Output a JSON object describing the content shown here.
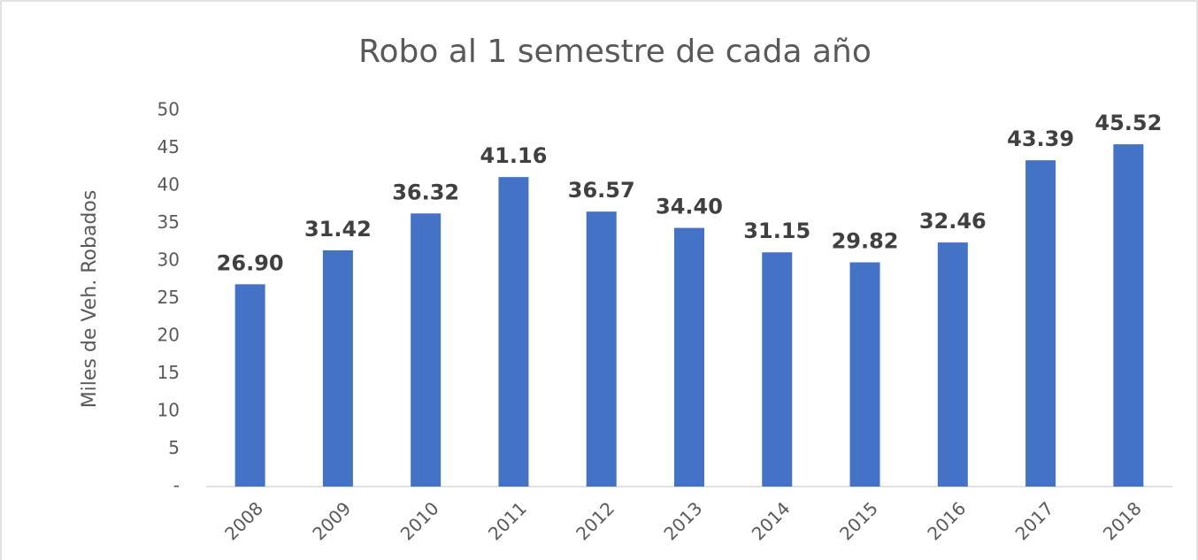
{
  "chart_data": {
    "type": "bar",
    "title": "Robo al 1 semestre de cada año",
    "y_label": "Miles de Veh. Robados",
    "categories": [
      "2008",
      "2009",
      "2010",
      "2011",
      "2012",
      "2013",
      "2014",
      "2015",
      "2016",
      "2017",
      "2018"
    ],
    "values": [
      26.9,
      31.42,
      36.32,
      41.16,
      36.57,
      34.4,
      31.15,
      29.82,
      32.46,
      43.39,
      45.52
    ],
    "value_labels": [
      "26.90",
      "31.42",
      "36.32",
      "41.16",
      "36.57",
      "34.40",
      "31.15",
      "29.82",
      "32.46",
      "43.39",
      "45.52"
    ],
    "color": "#4472c4",
    "ylim": [
      0,
      50
    ],
    "yticks": [
      {
        "value": 0,
        "label": "-"
      },
      5,
      10,
      15,
      20,
      25,
      30,
      35,
      40,
      45,
      50
    ]
  }
}
